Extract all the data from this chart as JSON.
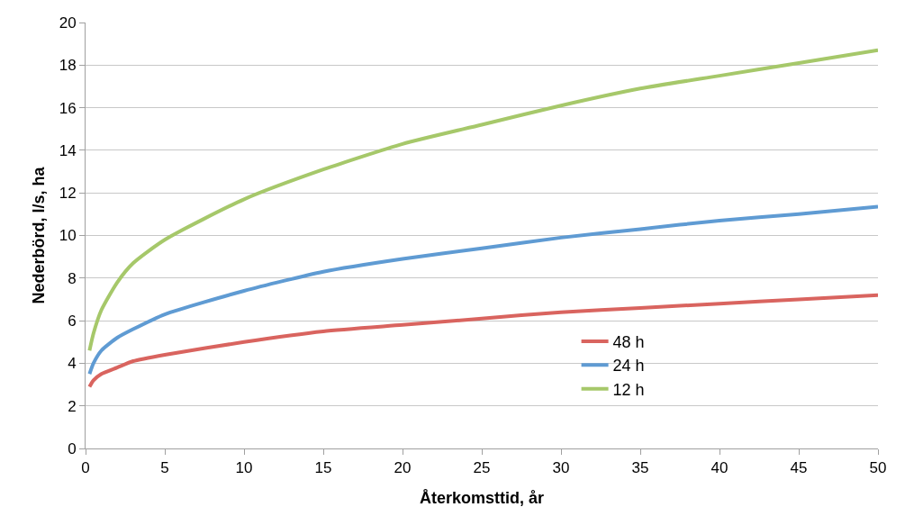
{
  "chart_data": {
    "type": "line",
    "xlabel": "Återkomsttid, år",
    "ylabel": "Nederbörd, l/s, ha",
    "x": [
      0.25,
      0.5,
      1,
      2,
      3,
      5,
      10,
      15,
      20,
      25,
      30,
      35,
      40,
      45,
      50
    ],
    "series": [
      {
        "name": "48 h",
        "color": "#d9645f",
        "values": [
          2.9,
          3.2,
          3.5,
          3.8,
          4.1,
          4.4,
          5.0,
          5.5,
          5.8,
          6.1,
          6.4,
          6.6,
          6.8,
          7.0,
          7.2
        ]
      },
      {
        "name": "24 h",
        "color": "#5f9bd3",
        "values": [
          3.5,
          4.0,
          4.6,
          5.2,
          5.6,
          6.3,
          7.4,
          8.3,
          8.9,
          9.4,
          9.9,
          10.3,
          10.7,
          11.0,
          11.35
        ]
      },
      {
        "name": "12 h",
        "color": "#a6c86a",
        "values": [
          4.6,
          5.4,
          6.5,
          7.8,
          8.7,
          9.8,
          11.7,
          13.1,
          14.3,
          15.2,
          16.1,
          16.9,
          17.5,
          18.1,
          18.7
        ]
      }
    ],
    "xlim": [
      0,
      50
    ],
    "xticks": [
      0,
      5,
      10,
      15,
      20,
      25,
      30,
      35,
      40,
      45,
      50
    ],
    "ylim": [
      0,
      20
    ],
    "yticks": [
      0,
      2,
      4,
      6,
      8,
      10,
      12,
      14,
      16,
      18,
      20
    ],
    "grid": "y",
    "legend": "bottom right",
    "marker": "none",
    "line_style": "solid"
  }
}
